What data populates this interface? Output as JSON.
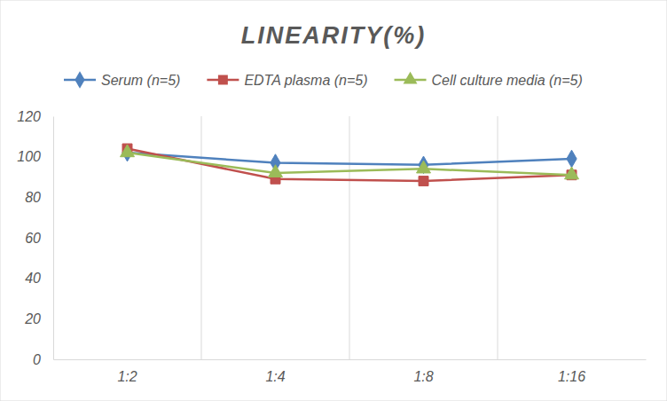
{
  "chart_data": {
    "type": "line",
    "title": "LINEARITY(%)",
    "categories": [
      "1:2",
      "1:4",
      "1:8",
      "1:16"
    ],
    "series": [
      {
        "name": "Serum (n=5)",
        "color": "#4f81bd",
        "marker": "diamond",
        "values": [
          102,
          97,
          96,
          99
        ]
      },
      {
        "name": "EDTA plasma (n=5)",
        "color": "#c0504d",
        "marker": "square",
        "values": [
          104,
          89,
          88,
          91
        ]
      },
      {
        "name": "Cell culture media (n=5)",
        "color": "#9bbb59",
        "marker": "triangle",
        "values": [
          102,
          92,
          94,
          91
        ]
      }
    ],
    "ylim": [
      0,
      120
    ],
    "yticks": [
      0,
      20,
      40,
      60,
      80,
      100,
      120
    ],
    "grid": true,
    "legend": "top"
  }
}
